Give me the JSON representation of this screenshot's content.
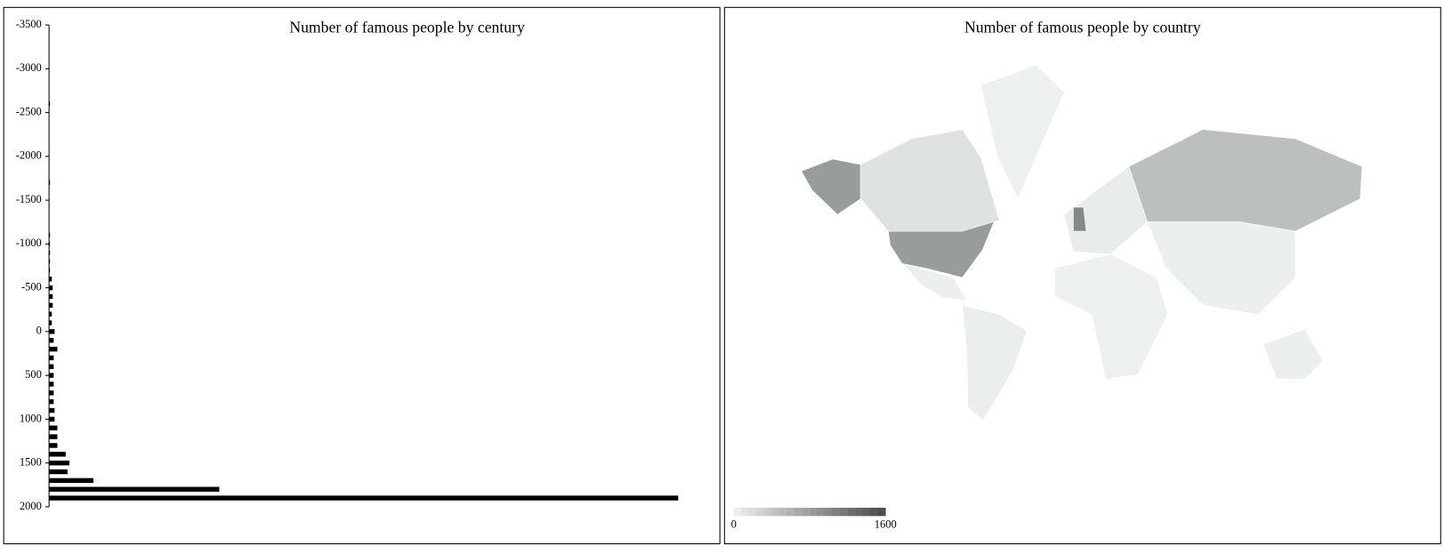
{
  "chart_data": [
    {
      "type": "hbar",
      "title": "Number of famous people by century",
      "categories": [
        -3500,
        -3400,
        -3300,
        -3200,
        -3100,
        -3000,
        -2900,
        -2800,
        -2700,
        -2600,
        -2500,
        -2400,
        -2300,
        -2200,
        -2100,
        -2000,
        -1900,
        -1800,
        -1700,
        -1600,
        -1500,
        -1400,
        -1300,
        -1200,
        -1100,
        -1000,
        -900,
        -800,
        -700,
        -600,
        -500,
        -400,
        -300,
        -200,
        -100,
        0,
        100,
        200,
        300,
        400,
        500,
        600,
        700,
        800,
        900,
        1000,
        1100,
        1200,
        1300,
        1400,
        1500,
        1600,
        1700,
        1800,
        1900
      ],
      "values": [
        0,
        0,
        0,
        0,
        0,
        0,
        0,
        0,
        0,
        1,
        0,
        0,
        0,
        0,
        0,
        0,
        0,
        0,
        1,
        0,
        0,
        0,
        0,
        0,
        1,
        1,
        1,
        1,
        1,
        3,
        4,
        4,
        4,
        3,
        3,
        6,
        5,
        9,
        5,
        5,
        5,
        5,
        5,
        5,
        6,
        6,
        9,
        9,
        9,
        18,
        22,
        20,
        48,
        184,
        680
      ],
      "color": "#000000",
      "xlim": [
        0,
        680
      ],
      "ylim": [
        -3500,
        2000
      ],
      "yticks": [
        -3500,
        -3000,
        -2500,
        -2000,
        -1500,
        -1000,
        -500,
        0,
        500,
        1000,
        1500,
        2000
      ]
    },
    {
      "type": "choropleth",
      "title": "Number of famous people by country",
      "values": [
        820,
        820,
        150,
        20,
        30,
        40,
        60,
        1000,
        480,
        20,
        30,
        25
      ],
      "colorlim": [
        0,
        1600
      ],
      "colors": [
        "#eef2f1",
        "#434c47"
      ],
      "colorticks": [
        0,
        1600
      ]
    }
  ]
}
